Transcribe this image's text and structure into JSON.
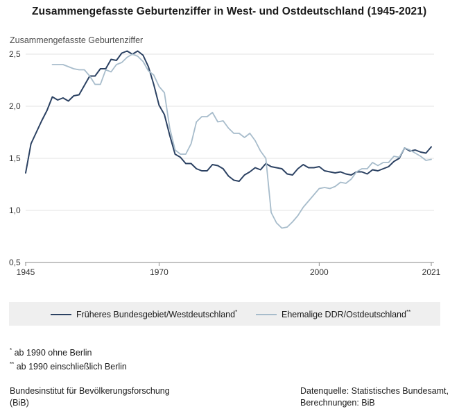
{
  "title": "Zusammengefasste Geburtenziffer in West- und Ostdeutschland (1945-2021)",
  "ylabel": "Zusammengefasste Geburtenziffer",
  "legend": {
    "west": {
      "label": "Früheres Bundesgebiet/Westdeutschland",
      "mark": "*"
    },
    "east": {
      "label": "Ehemalige DDR/Ostdeutschland",
      "mark": "**"
    }
  },
  "notes": [
    {
      "mark": "*",
      "text": "ab 1990 ohne Berlin"
    },
    {
      "mark": "**",
      "text": "ab 1990 einschließlich Berlin"
    }
  ],
  "footer": {
    "left_line1": "Bundesinstitut für Bevölkerungsforschung",
    "left_line2": "(BiB)",
    "right_line1": "Datenquelle: Statistisches Bundesamt,",
    "right_line2": "Berechnungen: BiB"
  },
  "colors": {
    "west": "#2b4162",
    "east": "#a7bccb",
    "grid": "#e3e3e3",
    "axis": "#888888"
  },
  "chart_data": {
    "type": "line",
    "title": "Zusammengefasste Geburtenziffer in West- und Ostdeutschland (1945-2021)",
    "ylabel": "Zusammengefasste Geburtenziffer",
    "xlim": [
      1945,
      2021
    ],
    "ylim": [
      0.5,
      2.5
    ],
    "xticks": [
      {
        "value": 1945,
        "label": "1945"
      },
      {
        "value": 1970,
        "label": "1970"
      },
      {
        "value": 2000,
        "label": "2000"
      },
      {
        "value": 2021,
        "label": "2021"
      }
    ],
    "yticks": [
      {
        "value": 0.5,
        "label": "0,5"
      },
      {
        "value": 1.0,
        "label": "1,0"
      },
      {
        "value": 1.5,
        "label": "1,5"
      },
      {
        "value": 2.0,
        "label": "2,0"
      },
      {
        "value": 2.5,
        "label": "2,5"
      }
    ],
    "grid": true,
    "series": [
      {
        "name": "Früheres Bundesgebiet/Westdeutschland",
        "color": "#2b4162",
        "x": [
          1945,
          1946,
          1947,
          1948,
          1949,
          1950,
          1951,
          1952,
          1953,
          1954,
          1955,
          1956,
          1957,
          1958,
          1959,
          1960,
          1961,
          1962,
          1963,
          1964,
          1965,
          1966,
          1967,
          1968,
          1969,
          1970,
          1971,
          1972,
          1973,
          1974,
          1975,
          1976,
          1977,
          1978,
          1979,
          1980,
          1981,
          1982,
          1983,
          1984,
          1985,
          1986,
          1987,
          1988,
          1989,
          1990,
          1991,
          1992,
          1993,
          1994,
          1995,
          1996,
          1997,
          1998,
          1999,
          2000,
          2001,
          2002,
          2003,
          2004,
          2005,
          2006,
          2007,
          2008,
          2009,
          2010,
          2011,
          2012,
          2013,
          2014,
          2015,
          2016,
          2017,
          2018,
          2019,
          2020,
          2021
        ],
        "values": [
          1.36,
          1.64,
          1.75,
          1.86,
          1.96,
          2.09,
          2.06,
          2.08,
          2.05,
          2.1,
          2.11,
          2.2,
          2.29,
          2.29,
          2.36,
          2.36,
          2.45,
          2.44,
          2.51,
          2.53,
          2.5,
          2.53,
          2.49,
          2.38,
          2.21,
          2.01,
          1.92,
          1.72,
          1.54,
          1.51,
          1.45,
          1.45,
          1.4,
          1.38,
          1.38,
          1.44,
          1.43,
          1.4,
          1.33,
          1.29,
          1.28,
          1.34,
          1.37,
          1.41,
          1.39,
          1.45,
          1.42,
          1.41,
          1.4,
          1.35,
          1.34,
          1.4,
          1.44,
          1.41,
          1.41,
          1.42,
          1.38,
          1.37,
          1.36,
          1.37,
          1.35,
          1.34,
          1.37,
          1.37,
          1.35,
          1.39,
          1.38,
          1.4,
          1.42,
          1.47,
          1.5,
          1.6,
          1.57,
          1.58,
          1.56,
          1.55,
          1.61
        ]
      },
      {
        "name": "Ehemalige DDR/Ostdeutschland",
        "color": "#a7bccb",
        "x": [
          1950,
          1951,
          1952,
          1953,
          1954,
          1955,
          1956,
          1957,
          1958,
          1959,
          1960,
          1961,
          1962,
          1963,
          1964,
          1965,
          1966,
          1967,
          1968,
          1969,
          1970,
          1971,
          1972,
          1973,
          1974,
          1975,
          1976,
          1977,
          1978,
          1979,
          1980,
          1981,
          1982,
          1983,
          1984,
          1985,
          1986,
          1987,
          1988,
          1989,
          1990,
          1991,
          1992,
          1993,
          1994,
          1995,
          1996,
          1997,
          1998,
          1999,
          2000,
          2001,
          2002,
          2003,
          2004,
          2005,
          2006,
          2007,
          2008,
          2009,
          2010,
          2011,
          2012,
          2013,
          2014,
          2015,
          2016,
          2017,
          2018,
          2019,
          2020,
          2021
        ],
        "values": [
          2.4,
          2.4,
          2.4,
          2.38,
          2.36,
          2.35,
          2.35,
          2.29,
          2.21,
          2.21,
          2.35,
          2.33,
          2.4,
          2.42,
          2.47,
          2.5,
          2.48,
          2.43,
          2.34,
          2.3,
          2.19,
          2.13,
          1.79,
          1.58,
          1.54,
          1.54,
          1.64,
          1.85,
          1.9,
          1.9,
          1.94,
          1.85,
          1.86,
          1.79,
          1.74,
          1.74,
          1.7,
          1.74,
          1.67,
          1.57,
          1.5,
          0.98,
          0.88,
          0.83,
          0.84,
          0.89,
          0.95,
          1.03,
          1.09,
          1.15,
          1.21,
          1.22,
          1.21,
          1.23,
          1.27,
          1.26,
          1.3,
          1.37,
          1.4,
          1.4,
          1.46,
          1.43,
          1.46,
          1.46,
          1.52,
          1.51,
          1.6,
          1.58,
          1.55,
          1.52,
          1.48,
          1.49
        ]
      }
    ]
  }
}
